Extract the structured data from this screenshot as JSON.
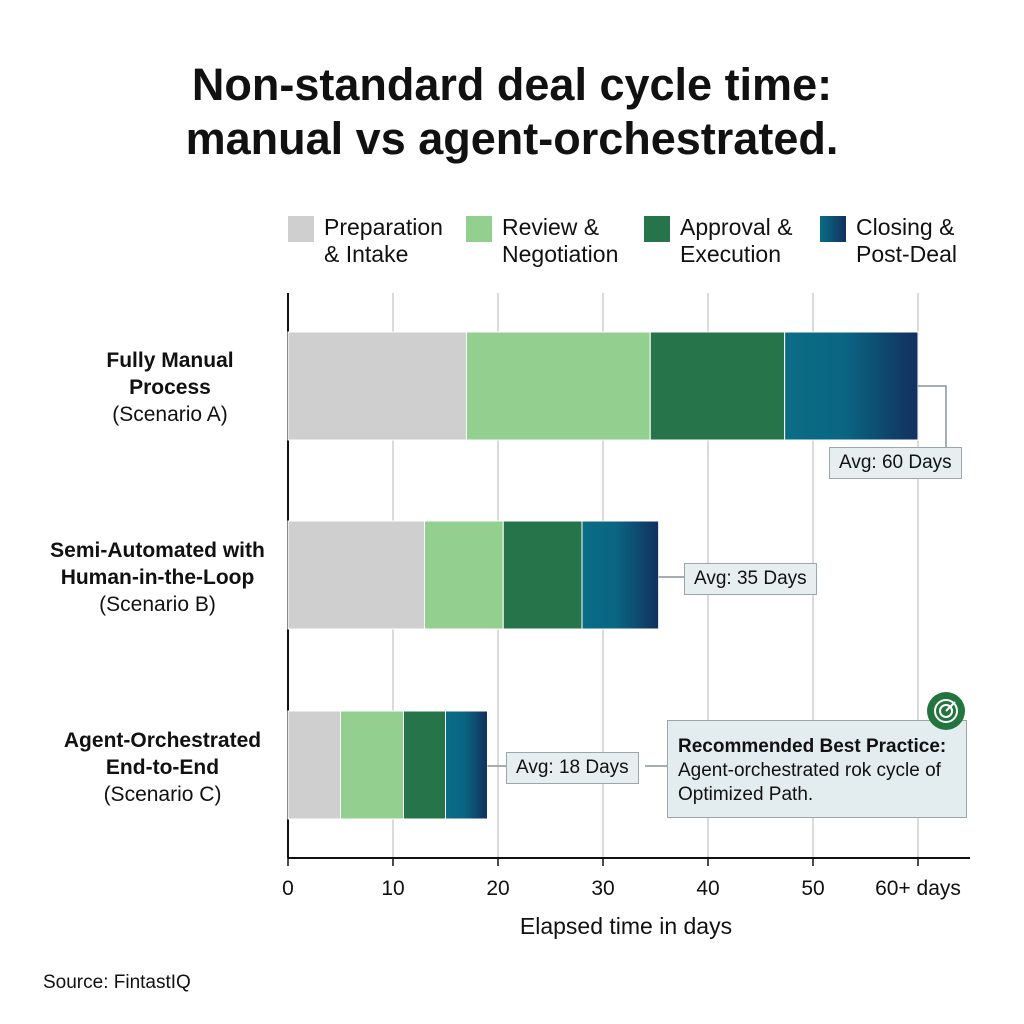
{
  "title_line1": "Non-standard deal cycle time:",
  "title_line2": "manual vs agent-orchestrated.",
  "legend": [
    {
      "line1": "Preparation",
      "line2": "& Intake",
      "color": "#cfcfcf"
    },
    {
      "line1": "Review &",
      "line2": "Negotiation",
      "color": "#93cf8e"
    },
    {
      "line1": "Approval &",
      "line2": "Execution",
      "color": "#26744a"
    },
    {
      "line1": "Closing &",
      "line2": "Post-Deal",
      "color": "#0a6d86"
    }
  ],
  "chart_data": {
    "type": "bar",
    "orientation": "horizontal",
    "stacked": true,
    "xlabel": "Elapsed time in days",
    "xlim": [
      0,
      65
    ],
    "xticks": [
      0,
      10,
      20,
      30,
      40,
      50,
      60
    ],
    "xtick_labels": [
      "0",
      "10",
      "20",
      "30",
      "40",
      "50",
      "60+ days"
    ],
    "grid": "vertical",
    "legend_position": "top",
    "categories": [
      {
        "bold1": "Fully Manual",
        "bold2": "Process",
        "sub": "(Scenario A)"
      },
      {
        "bold1": "Semi-Automated with",
        "bold2": "Human-in-the-Loop",
        "sub": "(Scenario B)"
      },
      {
        "bold1": "Agent-Orchestrated",
        "bold2": "End-to-End",
        "sub": "(Scenario C)"
      }
    ],
    "series": [
      {
        "name": "Preparation & Intake",
        "values": [
          17,
          13,
          5
        ]
      },
      {
        "name": "Review & Negotiation",
        "values": [
          17.5,
          7.5,
          6
        ]
      },
      {
        "name": "Approval & Execution",
        "values": [
          12.8,
          7.5,
          4
        ]
      },
      {
        "name": "Closing & Post-Deal",
        "values": [
          12.7,
          7.3,
          4
        ]
      }
    ],
    "annotations": [
      "Avg: 60 Days",
      "Avg: 35 Days",
      "Avg: 18 Days"
    ]
  },
  "recommendation": {
    "heading": "Recommended Best Practice:",
    "line1": "Agent-orchestrated rok cycle of",
    "line2": "Optimized Path.",
    "icon": "target-icon"
  },
  "source": "Source: FintastIQ"
}
